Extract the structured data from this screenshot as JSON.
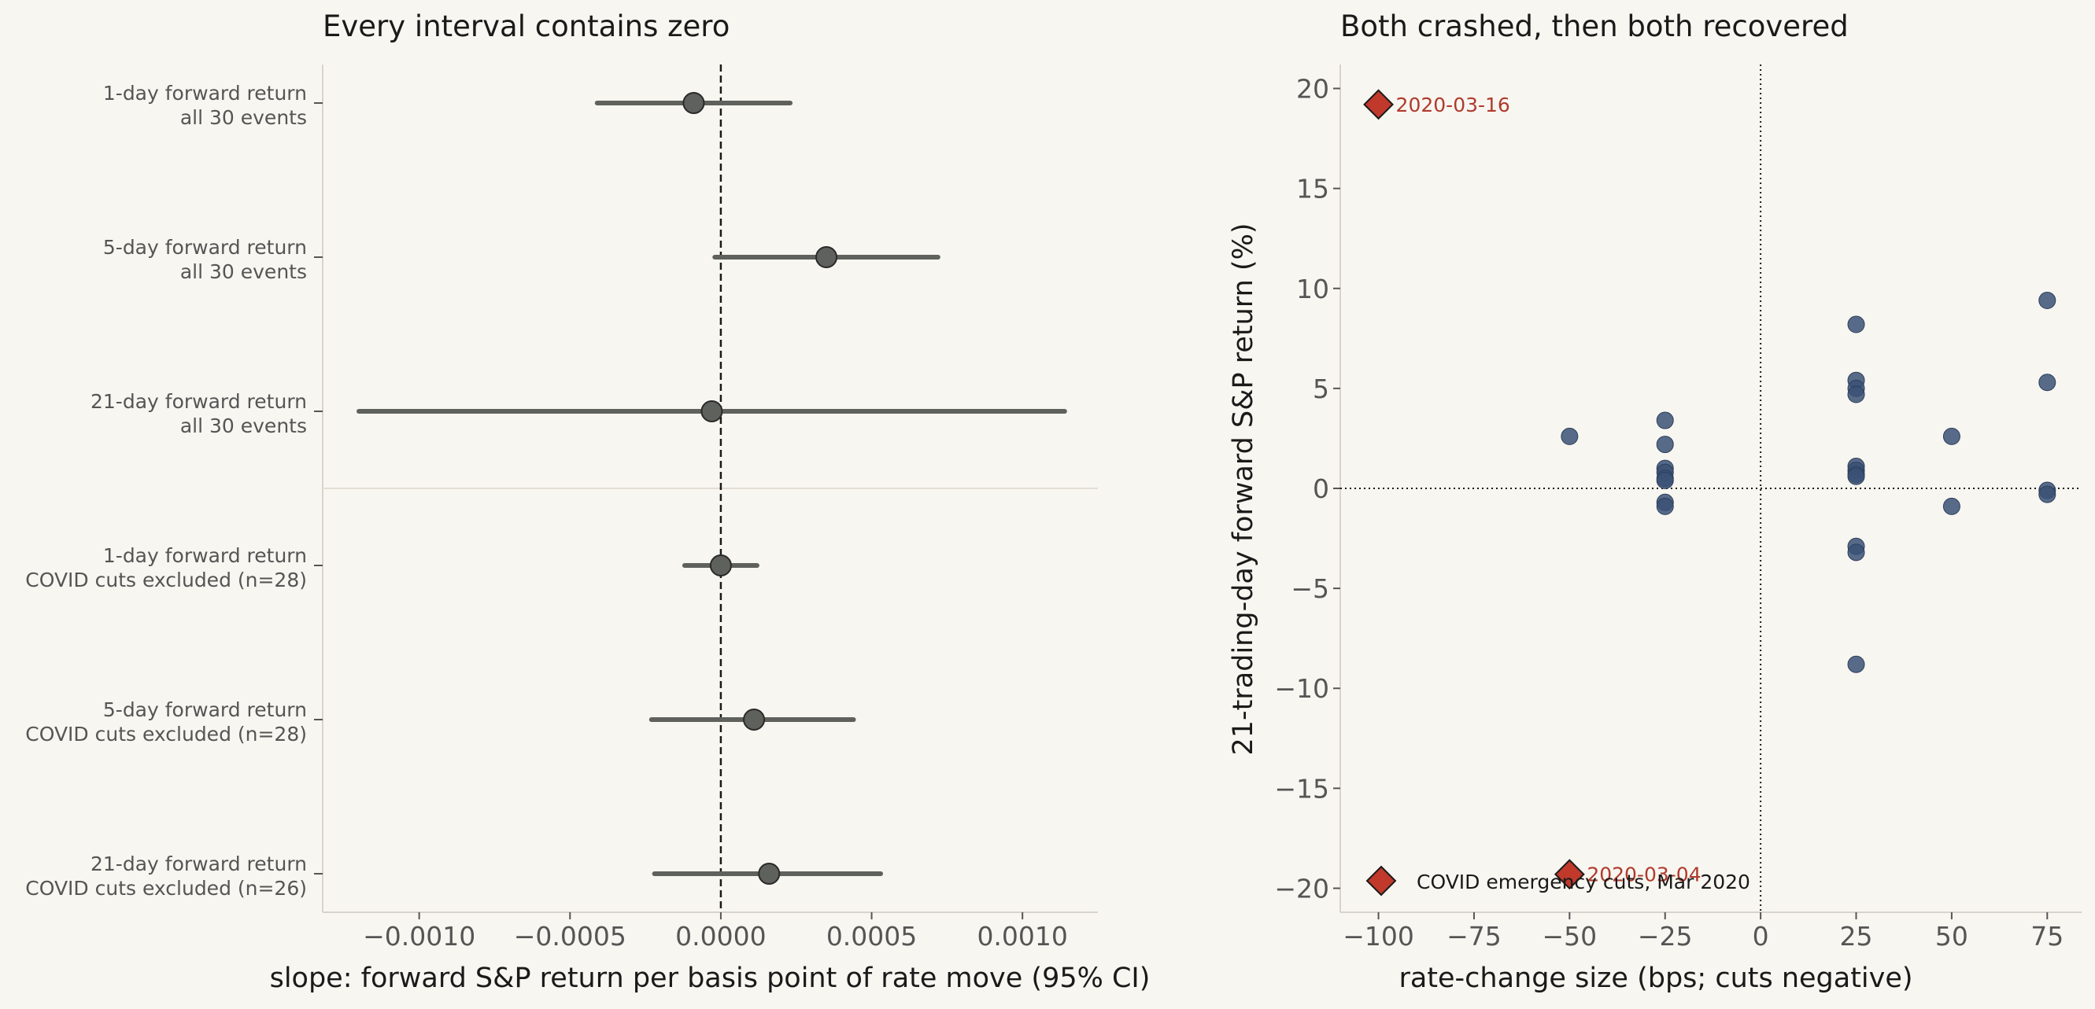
{
  "colors": {
    "background": "#f8f6f0",
    "forest_point": "#5f615d",
    "forest_line": "#5f615d",
    "scatter_point": "#3b5175",
    "covid": "#c0392b",
    "covid_label": "#b03a2e",
    "axis_text": "#555555",
    "title_text": "#1a1a1a",
    "spine": "#d8d4cc"
  },
  "chart_data": [
    {
      "type": "forest",
      "title": "Every interval contains zero",
      "xlabel": "slope: forward S&P return per basis point of rate move (95% CI)",
      "xlim": [
        -0.00132,
        0.00125
      ],
      "xticks": [
        -0.001,
        -0.0005,
        0.0,
        0.0005,
        0.001
      ],
      "xtick_labels": [
        "−0.0010",
        "−0.0005",
        "0.0000",
        "0.0005",
        "0.0010"
      ],
      "reference_line": 0.0,
      "grid": false,
      "rows": [
        {
          "label_line1": "1-day forward return",
          "label_line2": "all 30 events",
          "estimate": -9e-05,
          "ci": [
            -0.00041,
            0.00023
          ]
        },
        {
          "label_line1": "5-day forward return",
          "label_line2": "all 30 events",
          "estimate": 0.00035,
          "ci": [
            -2e-05,
            0.00072
          ]
        },
        {
          "label_line1": "21-day forward return",
          "label_line2": "all 30 events",
          "estimate": -3e-05,
          "ci": [
            -0.0012,
            0.00114
          ]
        },
        {
          "label_line1": "1-day forward return",
          "label_line2": "COVID cuts excluded (n=28)",
          "estimate": 0.0,
          "ci": [
            -0.00012,
            0.00012
          ]
        },
        {
          "label_line1": "5-day forward return",
          "label_line2": "COVID cuts excluded (n=28)",
          "estimate": 0.00011,
          "ci": [
            -0.00023,
            0.00044
          ]
        },
        {
          "label_line1": "21-day forward return",
          "label_line2": "COVID cuts excluded (n=26)",
          "estimate": 0.00016,
          "ci": [
            -0.00022,
            0.00053
          ]
        }
      ]
    },
    {
      "type": "scatter",
      "title": "Both crashed, then both recovered",
      "xlabel": "rate-change size (bps; cuts negative)",
      "ylabel": "21-trading-day forward S&P return (%)",
      "xlim": [
        -110,
        84
      ],
      "ylim": [
        -21.2,
        21.2
      ],
      "xticks": [
        -100,
        -75,
        -50,
        -25,
        0,
        25,
        50,
        75
      ],
      "xtick_labels": [
        "−100",
        "−75",
        "−50",
        "−25",
        "0",
        "25",
        "50",
        "75"
      ],
      "yticks": [
        -20,
        -15,
        -10,
        -5,
        0,
        5,
        10,
        15,
        20
      ],
      "ytick_labels": [
        "−20",
        "−15",
        "−10",
        "−5",
        "0",
        "5",
        "10",
        "15",
        "20"
      ],
      "grid": false,
      "legend_position": "lower-left",
      "series": [
        {
          "points": [
            {
              "x": -50,
              "y": 2.6
            },
            {
              "x": -25,
              "y": 3.4
            },
            {
              "x": -25,
              "y": 2.2
            },
            {
              "x": -25,
              "y": 1.0
            },
            {
              "x": -25,
              "y": 0.8
            },
            {
              "x": -25,
              "y": 0.5
            },
            {
              "x": -25,
              "y": 0.4
            },
            {
              "x": -25,
              "y": -0.7
            },
            {
              "x": -25,
              "y": -0.9
            },
            {
              "x": 25,
              "y": 8.2
            },
            {
              "x": 25,
              "y": 5.4
            },
            {
              "x": 25,
              "y": 5.0
            },
            {
              "x": 25,
              "y": 4.7
            },
            {
              "x": 25,
              "y": 1.1
            },
            {
              "x": 25,
              "y": 0.9
            },
            {
              "x": 25,
              "y": 0.7
            },
            {
              "x": 25,
              "y": 0.6
            },
            {
              "x": 25,
              "y": -2.9
            },
            {
              "x": 25,
              "y": -3.2
            },
            {
              "x": 25,
              "y": -8.8
            },
            {
              "x": 50,
              "y": 2.6
            },
            {
              "x": 50,
              "y": -0.9
            },
            {
              "x": 75,
              "y": 9.4
            },
            {
              "x": 75,
              "y": 5.3
            },
            {
              "x": 75,
              "y": -0.1
            },
            {
              "x": 75,
              "y": -0.3
            }
          ]
        },
        {
          "name": "COVID emergency cuts, Mar 2020",
          "marker": "diamond",
          "points": [
            {
              "x": -100,
              "y": 19.2,
              "label": "2020-03-16"
            },
            {
              "x": -50,
              "y": -19.3,
              "label": "2020-03-04"
            }
          ]
        }
      ]
    }
  ]
}
